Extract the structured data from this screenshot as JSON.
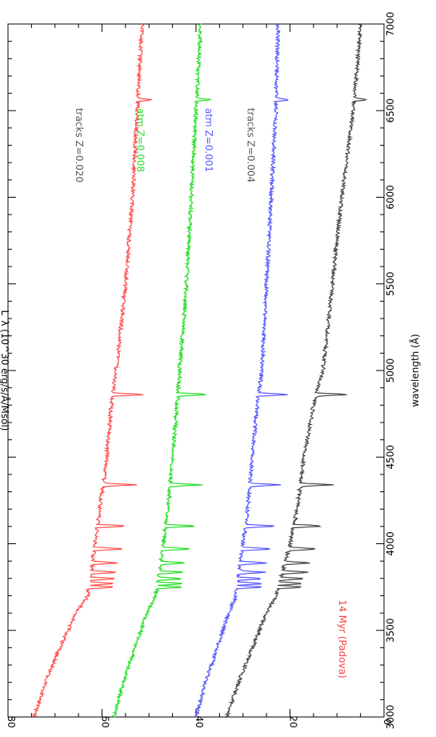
{
  "chart_data": {
    "type": "line",
    "title": "",
    "xlabel": "wavelength (Å)",
    "ylabel": "L_λ (10^30 erg/s/Å/Msol)",
    "xlim": [
      3000,
      7000
    ],
    "ylim": [
      0,
      80
    ],
    "x_ticks": [
      "3000",
      "3500",
      "4000",
      "4500",
      "5000",
      "5500",
      "6000",
      "6500",
      "7000"
    ],
    "y_ticks": [
      "0",
      "20",
      "40",
      "60",
      "80"
    ],
    "grid": false,
    "orientation": "rotated-90-clockwise",
    "annotation": {
      "text": "14 Myr (Padova)",
      "color": "#ff4040"
    },
    "series": [
      {
        "name": "tracks Z=0.020",
        "color": "#ff4d4d",
        "x": [
          3000,
          3200,
          3400,
          3600,
          3700,
          3800,
          3900,
          4000,
          4200,
          4500,
          4800,
          5000,
          5500,
          6000,
          6500,
          7000
        ],
        "y": [
          74.5,
          72.0,
          69.0,
          65.5,
          63.0,
          62.5,
          62.0,
          61.5,
          60.5,
          59.0,
          58.0,
          57.0,
          55.0,
          53.5,
          52.5,
          51.5
        ]
      },
      {
        "name": "atm Z=0.008",
        "color": "#22dd22",
        "x": [
          3000,
          3200,
          3400,
          3600,
          3700,
          3800,
          3900,
          4000,
          4200,
          4500,
          4800,
          5000,
          5500,
          6000,
          6500,
          7000
        ],
        "y": [
          57.5,
          55.5,
          53.0,
          50.5,
          48.5,
          48.0,
          47.5,
          47.0,
          46.0,
          45.0,
          44.0,
          43.5,
          42.0,
          41.0,
          40.0,
          39.0
        ]
      },
      {
        "name": "atm Z=0.001",
        "color": "#5555ff",
        "x": [
          3000,
          3200,
          3400,
          3600,
          3700,
          3800,
          3900,
          4000,
          4200,
          4500,
          4800,
          5000,
          5500,
          6000,
          6500,
          7000
        ],
        "y": [
          40.0,
          38.0,
          35.5,
          33.0,
          31.5,
          31.0,
          30.5,
          30.0,
          29.0,
          28.0,
          27.0,
          26.0,
          25.0,
          24.0,
          23.0,
          22.5
        ]
      },
      {
        "name": "tracks Z=0.004",
        "color": "#444444",
        "x": [
          3000,
          3200,
          3400,
          3600,
          3700,
          3800,
          3900,
          4000,
          4200,
          4500,
          4800,
          5000,
          5500,
          6000,
          6500,
          7000
        ],
        "y": [
          33.5,
          31.0,
          28.0,
          25.0,
          23.0,
          22.0,
          21.0,
          20.0,
          18.5,
          17.0,
          15.0,
          13.0,
          11.0,
          9.0,
          6.5,
          5.0
        ]
      }
    ],
    "series_labels": [
      {
        "text": "tracks Z=0.020",
        "x": 6300,
        "y": 65.5,
        "color": "#555555"
      },
      {
        "text": "atm Z=0.008",
        "x": 6330,
        "y": 52.5,
        "color": "#22dd22"
      },
      {
        "text": "atm Z=0.001",
        "x": 6330,
        "y": 38.0,
        "color": "#5555ff"
      },
      {
        "text": "tracks Z=0.004",
        "x": 6300,
        "y": 29.0,
        "color": "#555555"
      }
    ],
    "absorption_lines": [
      3750,
      3770,
      3798,
      3835,
      3889,
      3970,
      4102,
      4340,
      4861,
      6563
    ]
  }
}
